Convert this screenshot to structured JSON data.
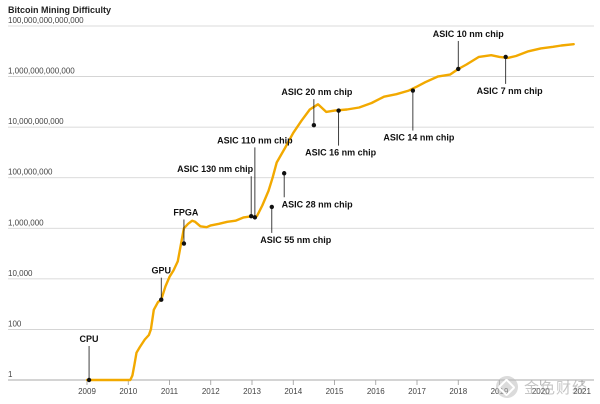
{
  "chart_data": {
    "type": "line",
    "title": "Bitcoin Mining Difficulty",
    "xlabel": "",
    "ylabel": "",
    "y_scale": "log",
    "xlim": [
      2009.0,
      2021.0
    ],
    "ylim": [
      1,
      100000000000000
    ],
    "grid": true,
    "line_color": "#F2A900",
    "x_ticks": [
      "2009",
      "2010",
      "2011",
      "2012",
      "2013",
      "2014",
      "2015",
      "2016",
      "2017",
      "2018",
      "2019",
      "2020",
      "2021"
    ],
    "y_ticks": [
      "1",
      "100",
      "10,000",
      "1,000,000",
      "100,000,000",
      "10,000,000,000",
      "1,000,000,000,000",
      "100,000,000,000,000"
    ],
    "series": [
      {
        "x": [
          2009.0,
          2009.5,
          2009.9,
          2010.05,
          2010.1,
          2010.15,
          2010.2,
          2010.28,
          2010.4,
          2010.5,
          2010.55,
          2010.62,
          2010.72,
          2010.8,
          2010.9,
          2011.0,
          2011.1,
          2011.2,
          2011.35,
          2011.45,
          2011.55,
          2011.62,
          2011.75,
          2011.9,
          2012.0,
          2012.2,
          2012.4,
          2012.6,
          2012.8,
          2013.0,
          2013.05,
          2013.12,
          2013.25,
          2013.4,
          2013.5,
          2013.6,
          2013.8,
          2013.9,
          2014.0,
          2014.2,
          2014.4,
          2014.6,
          2014.8,
          2015.0,
          2015.3,
          2015.6,
          2015.9,
          2016.2,
          2016.5,
          2016.8,
          2017.0,
          2017.2,
          2017.5,
          2017.8,
          2018.0,
          2018.2,
          2018.5,
          2018.8,
          2019.0,
          2019.2,
          2019.4,
          2019.7,
          2020.0,
          2020.3,
          2020.5,
          2020.8
        ],
        "values": [
          1,
          1,
          1,
          1,
          1.5,
          4,
          12,
          20,
          40,
          60,
          100,
          600,
          1200,
          1500,
          5000,
          12000,
          22000,
          50000,
          1000000,
          1500000,
          2000000,
          1800000,
          1200000,
          1100000,
          1300000,
          1500000,
          1800000,
          2000000,
          2700000,
          3000000,
          2700000,
          3000000,
          8000000,
          30000000,
          100000000,
          400000000,
          1500000000,
          3000000000,
          6000000000,
          18000000000,
          50000000000,
          80000000000,
          40000000000,
          45000000000,
          50000000000,
          60000000000,
          90000000000,
          160000000000,
          200000000000,
          280000000000,
          400000000000,
          600000000000,
          1000000000000,
          1200000000000,
          2000000000000,
          3000000000000,
          6000000000000,
          7000000000000,
          6000000000000,
          5500000000000,
          6500000000000,
          10000000000000,
          13000000000000,
          15000000000000,
          17000000000000,
          19000000000000
        ]
      }
    ],
    "annotations": [
      {
        "label": "CPU",
        "x": 2009.05,
        "y": 1,
        "label_side": "above"
      },
      {
        "label": "GPU",
        "x": 2010.8,
        "y": 1500,
        "label_side": "above"
      },
      {
        "label": "FPGA",
        "x": 2011.35,
        "y": 250000,
        "label_side": "above"
      },
      {
        "label": "ASIC 130 nm chip",
        "x": 2012.98,
        "y": 3000000,
        "label_side": "above"
      },
      {
        "label": "ASIC 110 nm chip",
        "x": 2013.07,
        "y": 2700000,
        "label_side": "above"
      },
      {
        "label": "ASIC 55 nm chip",
        "x": 2013.48,
        "y": 7000000,
        "label_side": "below"
      },
      {
        "label": "ASIC 28 nm chip",
        "x": 2013.78,
        "y": 150000000,
        "label_side": "below"
      },
      {
        "label": "ASIC 20 nm chip",
        "x": 2014.5,
        "y": 12000000000,
        "label_side": "above"
      },
      {
        "label": "ASIC 16 nm chip",
        "x": 2015.1,
        "y": 45000000000,
        "label_side": "below"
      },
      {
        "label": "ASIC 14 nm chip",
        "x": 2016.9,
        "y": 280000000000,
        "label_side": "below"
      },
      {
        "label": "ASIC 10 nm chip",
        "x": 2018.0,
        "y": 2000000000000,
        "label_side": "above"
      },
      {
        "label": "ASIC 7 nm chip",
        "x": 2019.15,
        "y": 6000000000000,
        "label_side": "below"
      }
    ]
  },
  "watermark": {
    "text": "金色财经",
    "icon": "gold-finance-logo-icon"
  }
}
